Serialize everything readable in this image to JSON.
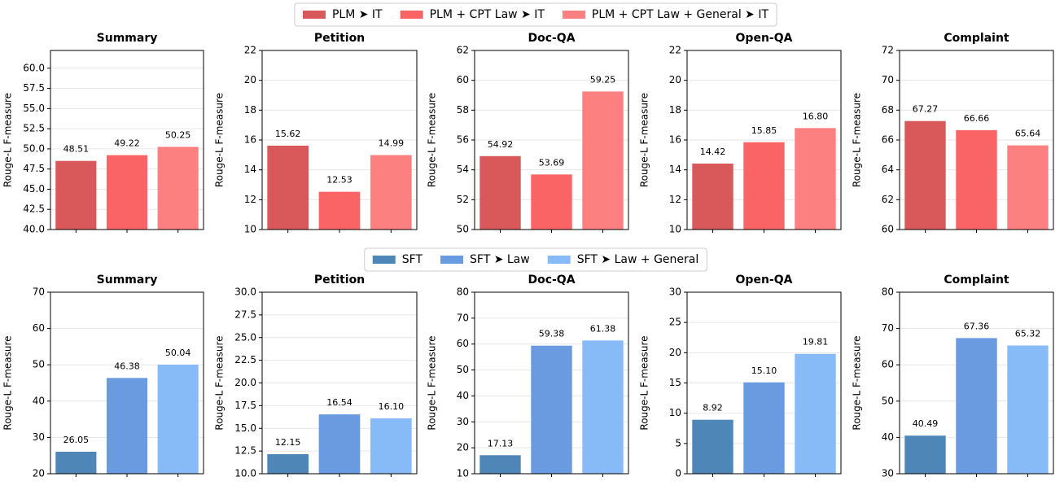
{
  "legends": [
    [
      {
        "name": "PLM ➤ IT",
        "color": "#d9595b"
      },
      {
        "name": "PLM + CPT Law ➤ IT",
        "color": "#fb6464"
      },
      {
        "name": "PLM + CPT Law + General ➤ IT",
        "color": "#fd8080"
      }
    ],
    [
      {
        "name": "SFT",
        "color": "#4f86b8"
      },
      {
        "name": "SFT ➤ Law",
        "color": "#6a9be0"
      },
      {
        "name": "SFT ➤ Law + General",
        "color": "#87bbf7"
      }
    ]
  ],
  "chart_data": [
    {
      "type": "bar",
      "title": "Summary",
      "ylabel": "Rouge-L F-measure",
      "values": [
        48.51,
        49.22,
        50.25
      ],
      "value_labels": [
        "48.51",
        "49.22",
        "50.25"
      ],
      "colors": [
        "#d9595b",
        "#fb6464",
        "#fd8080"
      ],
      "ylim": [
        40,
        62.2
      ],
      "yticks": [
        {
          "value": 40,
          "label": "40.0"
        },
        42.5,
        {
          "value": 45,
          "label": "45.0"
        },
        47.5,
        {
          "value": 50,
          "label": "50.0"
        },
        52.5,
        {
          "value": 55,
          "label": "55.0"
        },
        57.5,
        {
          "value": 60,
          "label": "60.0"
        }
      ],
      "grid": true
    },
    {
      "type": "bar",
      "title": "Petition",
      "ylabel": "Rouge-L F-measure",
      "values": [
        15.62,
        12.53,
        14.99
      ],
      "value_labels": [
        "15.62",
        "12.53",
        "14.99"
      ],
      "colors": [
        "#d9595b",
        "#fb6464",
        "#fd8080"
      ],
      "ylim": [
        10,
        22
      ],
      "yticks": [
        10,
        12,
        14,
        16,
        18,
        20,
        22
      ],
      "grid": true
    },
    {
      "type": "bar",
      "title": "Doc-QA",
      "ylabel": "Rouge-L F-measure",
      "values": [
        54.92,
        53.69,
        59.25
      ],
      "value_labels": [
        "54.92",
        "53.69",
        "59.25"
      ],
      "colors": [
        "#d9595b",
        "#fb6464",
        "#fd8080"
      ],
      "ylim": [
        50,
        62
      ],
      "yticks": [
        50,
        52,
        54,
        56,
        58,
        60,
        62
      ],
      "grid": true
    },
    {
      "type": "bar",
      "title": "Open-QA",
      "ylabel": "Rouge-L F-measure",
      "values": [
        14.42,
        15.85,
        16.8
      ],
      "value_labels": [
        "14.42",
        "15.85",
        "16.80"
      ],
      "colors": [
        "#d9595b",
        "#fb6464",
        "#fd8080"
      ],
      "ylim": [
        10,
        22
      ],
      "yticks": [
        10,
        12,
        14,
        16,
        18,
        20,
        22
      ],
      "grid": true
    },
    {
      "type": "bar",
      "title": "Complaint",
      "ylabel": "Rouge-L F-measure",
      "values": [
        67.27,
        66.66,
        65.64
      ],
      "value_labels": [
        "67.27",
        "66.66",
        "65.64"
      ],
      "colors": [
        "#d9595b",
        "#fb6464",
        "#fd8080"
      ],
      "ylim": [
        60,
        72
      ],
      "yticks": [
        60,
        62,
        64,
        66,
        68,
        70,
        72
      ],
      "grid": true
    },
    {
      "type": "bar",
      "title": "Summary",
      "ylabel": "Rouge-L F-measure",
      "values": [
        26.05,
        46.38,
        50.04
      ],
      "value_labels": [
        "26.05",
        "46.38",
        "50.04"
      ],
      "colors": [
        "#4f86b8",
        "#6a9be0",
        "#87bbf7"
      ],
      "ylim": [
        20,
        70
      ],
      "yticks": [
        20,
        30,
        40,
        50,
        60,
        70
      ],
      "grid": true
    },
    {
      "type": "bar",
      "title": "Petition",
      "ylabel": "Rouge-L F-measure",
      "values": [
        12.15,
        16.54,
        16.1
      ],
      "value_labels": [
        "12.15",
        "16.54",
        "16.10"
      ],
      "colors": [
        "#4f86b8",
        "#6a9be0",
        "#87bbf7"
      ],
      "ylim": [
        10,
        30
      ],
      "yticks": [
        {
          "value": 10,
          "label": "10.0"
        },
        12.5,
        {
          "value": 15,
          "label": "15.0"
        },
        17.5,
        {
          "value": 20,
          "label": "20.0"
        },
        22.5,
        {
          "value": 25,
          "label": "25.0"
        },
        27.5,
        {
          "value": 30,
          "label": "30.0"
        }
      ],
      "grid": true
    },
    {
      "type": "bar",
      "title": "Doc-QA",
      "ylabel": "Rouge-L F-measure",
      "values": [
        17.13,
        59.38,
        61.38
      ],
      "value_labels": [
        "17.13",
        "59.38",
        "61.38"
      ],
      "colors": [
        "#4f86b8",
        "#6a9be0",
        "#87bbf7"
      ],
      "ylim": [
        10,
        80
      ],
      "yticks": [
        10,
        20,
        30,
        40,
        50,
        60,
        70,
        80
      ],
      "grid": true
    },
    {
      "type": "bar",
      "title": "Open-QA",
      "ylabel": "Rouge-L F-measure",
      "values": [
        8.92,
        15.1,
        19.81
      ],
      "value_labels": [
        "8.92",
        "15.10",
        "19.81"
      ],
      "colors": [
        "#4f86b8",
        "#6a9be0",
        "#87bbf7"
      ],
      "ylim": [
        0,
        30
      ],
      "yticks": [
        0,
        5,
        10,
        15,
        20,
        25,
        30
      ],
      "grid": true
    },
    {
      "type": "bar",
      "title": "Complaint",
      "ylabel": "Rouge-L F-measure",
      "values": [
        40.49,
        67.36,
        65.32
      ],
      "value_labels": [
        "40.49",
        "67.36",
        "65.32"
      ],
      "colors": [
        "#4f86b8",
        "#6a9be0",
        "#87bbf7"
      ],
      "ylim": [
        30,
        80
      ],
      "yticks": [
        30,
        40,
        50,
        60,
        70,
        80
      ],
      "grid": true
    }
  ]
}
